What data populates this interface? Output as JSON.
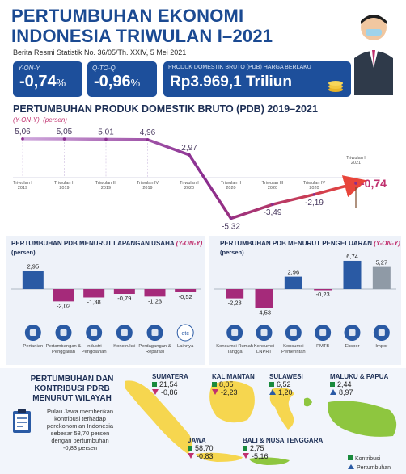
{
  "header": {
    "title_line1": "PERTUMBUHAN EKONOMI",
    "title_line2": "INDONESIA TRIWULAN I–2021",
    "subtitle": "Berita Resmi Statistik No. 36/05/Th. XXIV, 5 Mei 2021"
  },
  "kpis": [
    {
      "label": "Y-ON-Y",
      "value": "-0,74",
      "unit": "%"
    },
    {
      "label": "Q-TO-Q",
      "value": "-0,96",
      "unit": "%"
    },
    {
      "label": "PRODUK DOMESTIK BRUTO (PDB) HARGA BERLAKU",
      "value": "Rp3.969,1 Triliun",
      "unit": ""
    }
  ],
  "colors": {
    "primary": "#1d4f9b",
    "negative": "#c0306e",
    "positive_green": "#1a8a3c",
    "bar_blue": "#2a5aa4",
    "bar_magenta": "#a52a7a",
    "bar_gray": "#8f9aa6",
    "line_start": "#c89fd6",
    "line_end": "#e8453a"
  },
  "chart_data": [
    {
      "type": "line",
      "title": "PERTUMBUHAN PRODUK DOMESTIK BRUTO (PDB) 2019–2021",
      "subtitle": "(Y-ON-Y), (persen)",
      "categories": [
        "Triwulan I 2019",
        "Triwulan II 2019",
        "Triwulan III 2019",
        "Triwulan IV 2019",
        "Triwulan I 2020",
        "Triwulan II 2020",
        "Triwulan III 2020",
        "Triwulan IV 2020",
        "Triwulan I 2021"
      ],
      "values": [
        5.06,
        5.05,
        5.01,
        4.96,
        2.97,
        -5.32,
        -3.49,
        -2.19,
        -0.74
      ],
      "value_labels": [
        "5,06",
        "5,05",
        "5,01",
        "4,96",
        "2,97",
        "-5,32",
        "-3,49",
        "-2,19",
        "-0,74"
      ],
      "ylim": [
        -6,
        6
      ]
    },
    {
      "type": "bar",
      "title": "PERTUMBUHAN PDB MENURUT LAPANGAN USAHA",
      "title_suffix": "(Y-ON-Y)",
      "ylabel": "(persen)",
      "categories": [
        "Pertanian",
        "Pertambangan & Penggalian",
        "Industri Pengolahan",
        "Konstruksi",
        "Perdagangan & Reparasi",
        "Lainnya"
      ],
      "values": [
        2.95,
        -2.02,
        -1.38,
        -0.79,
        -1.23,
        -0.52
      ],
      "value_labels": [
        "2,95",
        "-2,02",
        "-1,38",
        "-0,79",
        "-1,23",
        "-0,52"
      ],
      "icons": [
        "sprout-icon",
        "mining-icon",
        "factory-icon",
        "crane-icon",
        "handshake-icon",
        "etc-icon"
      ],
      "icon_text": [
        "",
        "",
        "",
        "",
        "",
        "etc"
      ],
      "ylim": [
        -3,
        4
      ]
    },
    {
      "type": "bar",
      "title": "PERTUMBUHAN PDB MENURUT PENGELUARAN",
      "title_suffix": "(Y-ON-Y)",
      "ylabel": "(persen)",
      "categories": [
        "Konsumsi Rumah Tangga",
        "Konsumsi LNPRT",
        "Konsumsi Pemerintah",
        "PMTB",
        "Ekspor",
        "Impor"
      ],
      "values": [
        -2.23,
        -4.53,
        2.96,
        -0.23,
        6.74,
        5.27
      ],
      "value_labels": [
        "-2,23",
        "-4,53",
        "2,96",
        "-0,23",
        "6,74",
        "5,27"
      ],
      "icons": [
        "household-icon",
        "people-icon",
        "government-building-icon",
        "machinery-icon",
        "export-ship-icon",
        "import-plane-icon"
      ],
      "ylim": [
        -5,
        8
      ]
    }
  ],
  "region_section": {
    "title_lines": [
      "PERTUMBUHAN DAN",
      "KONTRIBUSI PDRB",
      "MENURUT WILAYAH"
    ],
    "note_lines": [
      "Pulau Jawa memberikan",
      "kontribusi terhadap",
      "perekonomian Indonesia",
      "sebesar 58,70 persen",
      "dengan pertumbuhan",
      "-0,83 persen"
    ],
    "regions": [
      {
        "name": "SUMATERA",
        "contribution": "21,54",
        "growth": "-0,86",
        "growth_dir": "down"
      },
      {
        "name": "KALIMANTAN",
        "contribution": "8,05",
        "growth": "-2,23",
        "growth_dir": "down"
      },
      {
        "name": "SULAWESI",
        "contribution": "6,52",
        "growth": "1,20",
        "growth_dir": "up"
      },
      {
        "name": "MALUKU & PAPUA",
        "contribution": "2,44",
        "growth": "8,97",
        "growth_dir": "up"
      },
      {
        "name": "JAWA",
        "contribution": "58,70",
        "growth": "-0,83",
        "growth_dir": "down"
      },
      {
        "name": "BALI & NUSA TENGGARA",
        "contribution": "2,75",
        "growth": "-5,16",
        "growth_dir": "down"
      }
    ],
    "legend": {
      "contribution": "Kontribusi",
      "growth": "Pertumbuhan"
    }
  }
}
